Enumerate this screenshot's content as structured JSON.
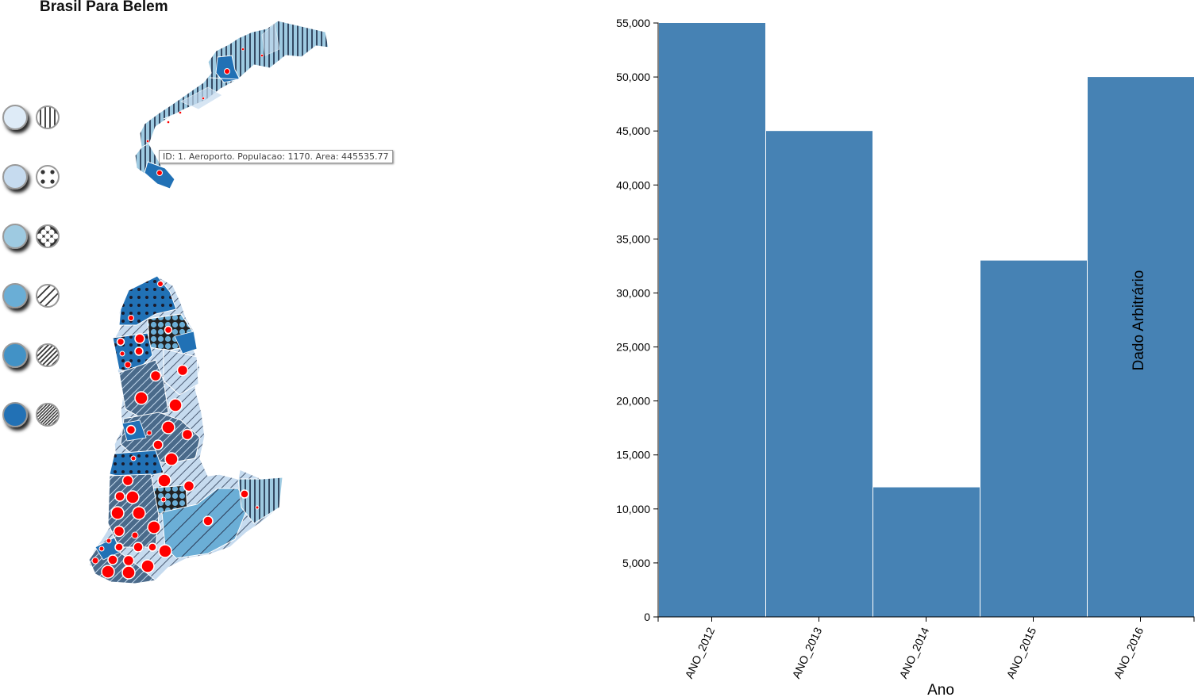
{
  "map": {
    "title": "Brasil Para Belem",
    "tooltip": "ID: 1. Aeroporto. Populacao: 1170. Area: 445535.77",
    "legend": [
      {
        "fill": "#deebf7",
        "pattern": "vertical-lines"
      },
      {
        "fill": "#c6dbef",
        "pattern": "sparse-dots"
      },
      {
        "fill": "#9ecae1",
        "pattern": "dense-dots"
      },
      {
        "fill": "#6baed6",
        "pattern": "wide-diagonal"
      },
      {
        "fill": "#4292c6",
        "pattern": "medium-diagonal"
      },
      {
        "fill": "#2171b5",
        "pattern": "dense-diagonal"
      }
    ],
    "marker_color": "#ff0000"
  },
  "chart_data": {
    "type": "bar",
    "categories": [
      "ANO_2012",
      "ANO_2013",
      "ANO_2014",
      "ANO_2015",
      "ANO_2016"
    ],
    "values": [
      55000,
      45000,
      12000,
      33000,
      50000
    ],
    "xlabel": "Ano",
    "ylabel": "Dado Arbitrário",
    "ylim": [
      0,
      55000
    ],
    "yticks": [
      0,
      5000,
      10000,
      15000,
      20000,
      25000,
      30000,
      35000,
      40000,
      45000,
      50000,
      55000
    ],
    "bar_color": "#4682b4",
    "grid": false
  }
}
